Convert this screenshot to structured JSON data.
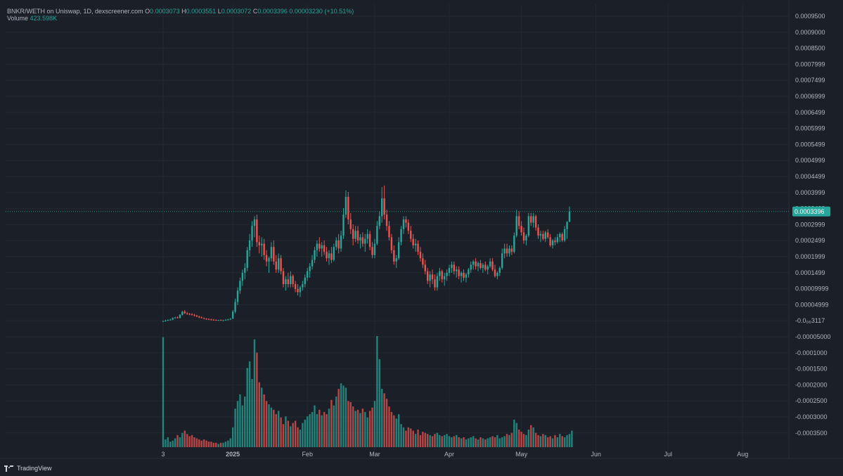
{
  "legend": {
    "symbol": "BNKR/WETH on Uniswap, 1D, dexscreener.com",
    "o_label": "O",
    "o_value": "0.0003073",
    "h_label": "H",
    "h_value": "0.0003551",
    "l_label": "L",
    "l_value": "0.0003072",
    "c_label": "C",
    "c_value": "0.0003396",
    "change": "0.00003230 (+10.51%)",
    "volume_label": "Volume",
    "volume_value": "423.598K"
  },
  "branding": {
    "text": "TradingView"
  },
  "colors": {
    "up": "#26a69a",
    "down": "#ef5350",
    "background": "#1b1f27",
    "grid": "#2a2e39",
    "last_price_tag": "#26a69a"
  },
  "chart_data": {
    "type": "candlestick",
    "interval": "1D",
    "last_price": "0.0003396",
    "y_ticks": [
      "0.0009500",
      "0.0009000",
      "0.0008500",
      "0.0007999",
      "0.0007499",
      "0.0006999",
      "0.0006499",
      "0.0005999",
      "0.0005499",
      "0.0004999",
      "0.0004499",
      "0.0003999",
      "0.0003499",
      "0.0002999",
      "0.0002499",
      "0.0001999",
      "0.0001499",
      "0.00009999",
      "0.00004999",
      "-0.0₀₆3117",
      "-0.00005000",
      "-0.0001000",
      "-0.0001500",
      "-0.0002000",
      "-0.0002500",
      "-0.0003000",
      "-0.0003500"
    ],
    "x_ticks": [
      "3",
      "2025",
      "Feb",
      "Mar",
      "Apr",
      "May",
      "Jun",
      "Jul",
      "Aug"
    ],
    "x_tick_days": [
      0,
      29,
      60,
      88,
      119,
      149,
      180,
      210,
      241
    ],
    "ohlc": [
      [
        0.0,
        2e-06,
        -2e-06,
        1e-06
      ],
      [
        1e-06,
        5e-06,
        -1e-06,
        2e-06
      ],
      [
        2e-06,
        6e-06,
        1e-06,
        4e-06
      ],
      [
        4e-06,
        8e-06,
        3e-06,
        5e-06
      ],
      [
        5e-06,
        1.2e-05,
        4e-06,
        1e-05
      ],
      [
        1e-05,
        1.4e-05,
        8e-06,
        1.2e-05
      ],
      [
        1.2e-05,
        1.5e-05,
        9e-06,
        1e-05
      ],
      [
        1e-05,
        2.2e-05,
        9e-06,
        2e-05
      ],
      [
        2e-05,
        3.2e-05,
        1.8e-05,
        3e-05
      ],
      [
        3e-05,
        3.5e-05,
        2.3e-05,
        2.5e-05
      ],
      [
        2.5e-05,
        2.9e-05,
        2e-05,
        2.3e-05
      ],
      [
        2.3e-05,
        2.6e-05,
        1.9e-05,
        2.2e-05
      ],
      [
        2.2e-05,
        2.5e-05,
        1.8e-05,
        2e-05
      ],
      [
        2e-05,
        2.3e-05,
        1.5e-05,
        1.8e-05
      ],
      [
        1.8e-05,
        2e-05,
        1.3e-05,
        1.5e-05
      ],
      [
        1.5e-05,
        1.7e-05,
        1e-05,
        1.2e-05
      ],
      [
        1.2e-05,
        1.5e-05,
        9e-06,
        1e-05
      ],
      [
        1e-05,
        1.2e-05,
        6e-06,
        8e-06
      ],
      [
        8e-06,
        1e-05,
        5e-06,
        7e-06
      ],
      [
        7e-06,
        9e-06,
        4e-06,
        6e-06
      ],
      [
        6e-06,
        8e-06,
        3e-06,
        5e-06
      ],
      [
        5e-06,
        7e-06,
        2e-06,
        4e-06
      ],
      [
        4e-06,
        6e-06,
        2e-06,
        3e-06
      ],
      [
        3e-06,
        5e-06,
        1e-06,
        4e-06
      ],
      [
        4e-06,
        6e-06,
        2e-06,
        3e-06
      ],
      [
        3e-06,
        5e-06,
        1e-06,
        3e-06
      ],
      [
        3e-06,
        6e-06,
        2e-06,
        5e-06
      ],
      [
        5e-06,
        8e-06,
        3e-06,
        6e-06
      ],
      [
        6e-06,
        1e-05,
        4e-06,
        8e-06
      ],
      [
        8e-06,
        3.5e-05,
        7e-06,
        3e-05
      ],
      [
        3e-05,
        7e-05,
        2.5e-05,
        6e-05
      ],
      [
        6e-05,
        0.000105,
        5e-05,
        9.5e-05
      ],
      [
        9.5e-05,
        0.000135,
        8.5e-05,
        0.000125
      ],
      [
        0.000125,
        0.00016,
        0.00011,
        0.00015
      ],
      [
        0.00015,
        0.00018,
        0.00013,
        0.000165
      ],
      [
        0.000165,
        0.00023,
        0.000155,
        0.00022
      ],
      [
        0.00022,
        0.00027,
        0.0002,
        0.00025
      ],
      [
        0.00025,
        0.00031,
        0.00023,
        0.000295
      ],
      [
        0.000295,
        0.000325,
        0.00026,
        0.000315
      ],
      [
        0.000315,
        0.00033,
        0.00023,
        0.000245
      ],
      [
        0.000245,
        0.000265,
        0.00021,
        0.000235
      ],
      [
        0.000235,
        0.00026,
        0.0002,
        0.00024
      ],
      [
        0.00024,
        0.000255,
        0.00019,
        0.000205
      ],
      [
        0.000205,
        0.00022,
        0.00017,
        0.000185
      ],
      [
        0.000185,
        0.0002,
        0.00015,
        0.000195
      ],
      [
        0.000195,
        0.000245,
        0.000185,
        0.00023
      ],
      [
        0.00023,
        0.00025,
        0.000175,
        0.000185
      ],
      [
        0.000185,
        0.000205,
        0.00015,
        0.00016
      ],
      [
        0.00016,
        0.00021,
        0.00015,
        0.000195
      ],
      [
        0.000195,
        0.000205,
        0.000145,
        0.000155
      ],
      [
        0.000155,
        0.000165,
        0.000105,
        0.000115
      ],
      [
        0.000115,
        0.00014,
        9.5e-05,
        0.00013
      ],
      [
        0.00013,
        0.00015,
        0.000105,
        0.000115
      ],
      [
        0.000115,
        0.000155,
        0.000105,
        0.00014
      ],
      [
        0.00014,
        0.000145,
        0.000105,
        0.000115
      ],
      [
        0.000115,
        0.000125,
        9e-05,
        0.0001
      ],
      [
        0.0001,
        0.000115,
        8e-05,
        9e-05
      ],
      [
        9e-05,
        0.00011,
        7.5e-05,
        0.000105
      ],
      [
        0.000105,
        0.000125,
        9.5e-05,
        0.000115
      ],
      [
        0.000115,
        0.000145,
        0.000105,
        0.000135
      ],
      [
        0.000135,
        0.000165,
        0.000125,
        0.000155
      ],
      [
        0.000155,
        0.00018,
        0.000135,
        0.00017
      ],
      [
        0.00017,
        0.000205,
        0.00016,
        0.00019
      ],
      [
        0.00019,
        0.00023,
        0.00018,
        0.00022
      ],
      [
        0.00022,
        0.00025,
        0.0002,
        0.00024
      ],
      [
        0.00024,
        0.00026,
        0.000215,
        0.000225
      ],
      [
        0.000225,
        0.000245,
        0.0002,
        0.000235
      ],
      [
        0.000235,
        0.00025,
        0.000205,
        0.000215
      ],
      [
        0.000215,
        0.00023,
        0.000185,
        0.000195
      ],
      [
        0.000195,
        0.00022,
        0.000175,
        0.00021
      ],
      [
        0.00021,
        0.00023,
        0.00018,
        0.00019
      ],
      [
        0.00019,
        0.00024,
        0.000185,
        0.00023
      ],
      [
        0.00023,
        0.00026,
        0.00022,
        0.00025
      ],
      [
        0.00025,
        0.00027,
        0.00021,
        0.000225
      ],
      [
        0.000225,
        0.00028,
        0.000215,
        0.000265
      ],
      [
        0.000265,
        0.00035,
        0.000255,
        0.00033
      ],
      [
        0.00033,
        0.000405,
        0.00032,
        0.000385
      ],
      [
        0.000385,
        0.0004,
        0.0003,
        0.000315
      ],
      [
        0.000315,
        0.000335,
        0.00027,
        0.000285
      ],
      [
        0.000285,
        0.0003,
        0.000235,
        0.000255
      ],
      [
        0.000255,
        0.000295,
        0.000245,
        0.00028
      ],
      [
        0.00028,
        0.000295,
        0.00024,
        0.00025
      ],
      [
        0.00025,
        0.00027,
        0.000225,
        0.00026
      ],
      [
        0.00026,
        0.000275,
        0.00023,
        0.00024
      ],
      [
        0.00024,
        0.00027,
        0.000215,
        0.000255
      ],
      [
        0.000255,
        0.000285,
        0.00024,
        0.00027
      ],
      [
        0.00027,
        0.00028,
        0.00022,
        0.00023
      ],
      [
        0.00023,
        0.000245,
        0.000195,
        0.000205
      ],
      [
        0.000205,
        0.000255,
        0.000195,
        0.00024
      ],
      [
        0.00024,
        0.00031,
        0.000235,
        0.000295
      ],
      [
        0.000295,
        0.00034,
        0.000285,
        0.000325
      ],
      [
        0.000325,
        0.000415,
        0.000305,
        0.00038
      ],
      [
        0.00038,
        0.00042,
        0.000315,
        0.00033
      ],
      [
        0.00033,
        0.000345,
        0.00028,
        0.000295
      ],
      [
        0.000295,
        0.00031,
        0.00025,
        0.00026
      ],
      [
        0.00026,
        0.00027,
        0.00021,
        0.00022
      ],
      [
        0.00022,
        0.000235,
        0.000175,
        0.000185
      ],
      [
        0.000185,
        0.000205,
        0.000165,
        0.000195
      ],
      [
        0.000195,
        0.00026,
        0.00019,
        0.000245
      ],
      [
        0.000245,
        0.000295,
        0.000235,
        0.000285
      ],
      [
        0.000285,
        0.000325,
        0.00027,
        0.000315
      ],
      [
        0.000315,
        0.000325,
        0.00029,
        0.000305
      ],
      [
        0.000305,
        0.000315,
        0.00027,
        0.00028
      ],
      [
        0.00028,
        0.000295,
        0.000245,
        0.000255
      ],
      [
        0.000255,
        0.00027,
        0.000225,
        0.000235
      ],
      [
        0.000235,
        0.000255,
        0.000215,
        0.00024
      ],
      [
        0.00024,
        0.00025,
        0.000205,
        0.000215
      ],
      [
        0.000215,
        0.00023,
        0.000185,
        0.000195
      ],
      [
        0.000195,
        0.00021,
        0.000165,
        0.000175
      ],
      [
        0.000175,
        0.00019,
        0.000145,
        0.000155
      ],
      [
        0.000155,
        0.000165,
        0.000115,
        0.000125
      ],
      [
        0.000125,
        0.000155,
        0.000105,
        0.000145
      ],
      [
        0.000145,
        0.00016,
        0.000115,
        0.00013
      ],
      [
        0.00013,
        0.000145,
        9.5e-05,
        0.000105
      ],
      [
        0.000105,
        0.00015,
        9.5e-05,
        0.00014
      ],
      [
        0.00014,
        0.000165,
        0.000125,
        0.000155
      ],
      [
        0.000155,
        0.00016,
        0.00012,
        0.00013
      ],
      [
        0.00013,
        0.00015,
        0.00011,
        0.00014
      ],
      [
        0.00014,
        0.00016,
        0.000125,
        0.00015
      ],
      [
        0.00015,
        0.000175,
        0.00014,
        0.000165
      ],
      [
        0.000165,
        0.000185,
        0.00015,
        0.000175
      ],
      [
        0.000175,
        0.000185,
        0.000145,
        0.000155
      ],
      [
        0.000155,
        0.00017,
        0.000135,
        0.00016
      ],
      [
        0.00016,
        0.00017,
        0.00013,
        0.00014
      ],
      [
        0.00014,
        0.000155,
        0.00012,
        0.00015
      ],
      [
        0.00015,
        0.00016,
        0.000125,
        0.000135
      ],
      [
        0.000135,
        0.00015,
        0.00012,
        0.000145
      ],
      [
        0.000145,
        0.000165,
        0.000135,
        0.00016
      ],
      [
        0.00016,
        0.000185,
        0.00015,
        0.000175
      ],
      [
        0.000175,
        0.00019,
        0.00016,
        0.000185
      ],
      [
        0.000185,
        0.000195,
        0.00016,
        0.00017
      ],
      [
        0.00017,
        0.000185,
        0.000155,
        0.00018
      ],
      [
        0.00018,
        0.00019,
        0.00016,
        0.000165
      ],
      [
        0.000165,
        0.00018,
        0.00015,
        0.000175
      ],
      [
        0.000175,
        0.000185,
        0.000155,
        0.00016
      ],
      [
        0.00016,
        0.000175,
        0.000145,
        0.00017
      ],
      [
        0.00017,
        0.000195,
        0.000165,
        0.000185
      ],
      [
        0.000185,
        0.000195,
        0.000155,
        0.00016
      ],
      [
        0.00016,
        0.000175,
        0.000135,
        0.00014
      ],
      [
        0.00014,
        0.000155,
        0.00013,
        0.00015
      ],
      [
        0.00015,
        0.00017,
        0.00014,
        0.000165
      ],
      [
        0.000165,
        0.000225,
        0.00016,
        0.00021
      ],
      [
        0.00021,
        0.00024,
        0.000195,
        0.000225
      ],
      [
        0.000225,
        0.00024,
        0.0002,
        0.00021
      ],
      [
        0.00021,
        0.000235,
        0.0002,
        0.000225
      ],
      [
        0.000225,
        0.000235,
        0.000205,
        0.000215
      ],
      [
        0.000215,
        0.000275,
        0.00021,
        0.000265
      ],
      [
        0.000265,
        0.000345,
        0.00026,
        0.000325
      ],
      [
        0.000325,
        0.00034,
        0.000285,
        0.000295
      ],
      [
        0.000295,
        0.00031,
        0.000265,
        0.000275
      ],
      [
        0.000275,
        0.00029,
        0.00024,
        0.00025
      ],
      [
        0.00025,
        0.00027,
        0.000235,
        0.000265
      ],
      [
        0.000265,
        0.000335,
        0.00026,
        0.000325
      ],
      [
        0.000325,
        0.000335,
        0.000295,
        0.000305
      ],
      [
        0.000305,
        0.000335,
        0.00029,
        0.000325
      ],
      [
        0.000325,
        0.00033,
        0.00028,
        0.00029
      ],
      [
        0.00029,
        0.0003,
        0.000255,
        0.000265
      ],
      [
        0.000265,
        0.00028,
        0.000245,
        0.00027
      ],
      [
        0.00027,
        0.00028,
        0.00025,
        0.000255
      ],
      [
        0.000255,
        0.00028,
        0.000245,
        0.000275
      ],
      [
        0.000275,
        0.000285,
        0.000255,
        0.00026
      ],
      [
        0.00026,
        0.00027,
        0.00023,
        0.000235
      ],
      [
        0.000235,
        0.000255,
        0.000225,
        0.00025
      ],
      [
        0.00025,
        0.00026,
        0.000235,
        0.000245
      ],
      [
        0.000245,
        0.00027,
        0.00024,
        0.00026
      ],
      [
        0.00026,
        0.000275,
        0.000245,
        0.00027
      ],
      [
        0.00027,
        0.000275,
        0.000245,
        0.00025
      ],
      [
        0.00025,
        0.000295,
        0.000245,
        0.000285
      ],
      [
        0.000285,
        0.00031,
        0.000255,
        0.0003073
      ],
      [
        0.0003073,
        0.0003551,
        0.0003072,
        0.0003396
      ]
    ],
    "volume": [
      1000,
      70,
      90,
      50,
      60,
      80,
      110,
      90,
      130,
      150,
      120,
      100,
      110,
      90,
      80,
      70,
      60,
      70,
      60,
      50,
      50,
      40,
      40,
      30,
      40,
      40,
      50,
      60,
      80,
      180,
      350,
      420,
      480,
      380,
      460,
      720,
      780,
      620,
      980,
      860,
      590,
      540,
      480,
      420,
      390,
      360,
      340,
      300,
      330,
      270,
      210,
      280,
      240,
      190,
      220,
      240,
      180,
      160,
      220,
      250,
      280,
      300,
      320,
      380,
      300,
      340,
      290,
      320,
      300,
      350,
      430,
      380,
      460,
      530,
      580,
      560,
      540,
      420,
      410,
      370,
      330,
      340,
      310,
      350,
      320,
      270,
      330,
      360,
      420,
      1010,
      800,
      530,
      490,
      440,
      370,
      320,
      290,
      260,
      300,
      210,
      180,
      150,
      180,
      170,
      150,
      120,
      160,
      110,
      140,
      130,
      120,
      110,
      100,
      120,
      130,
      110,
      100,
      110,
      120,
      100,
      90,
      100,
      110,
      90,
      80,
      90,
      70,
      80,
      90,
      100,
      80,
      70,
      90,
      80,
      70,
      80,
      90,
      100,
      90,
      110,
      80,
      90,
      100,
      120,
      110,
      130,
      250,
      220,
      160,
      140,
      120,
      110,
      160,
      200,
      180,
      130,
      110,
      100,
      120,
      110,
      90,
      100,
      80,
      110,
      90,
      120,
      100,
      90,
      110,
      120,
      150
    ]
  }
}
